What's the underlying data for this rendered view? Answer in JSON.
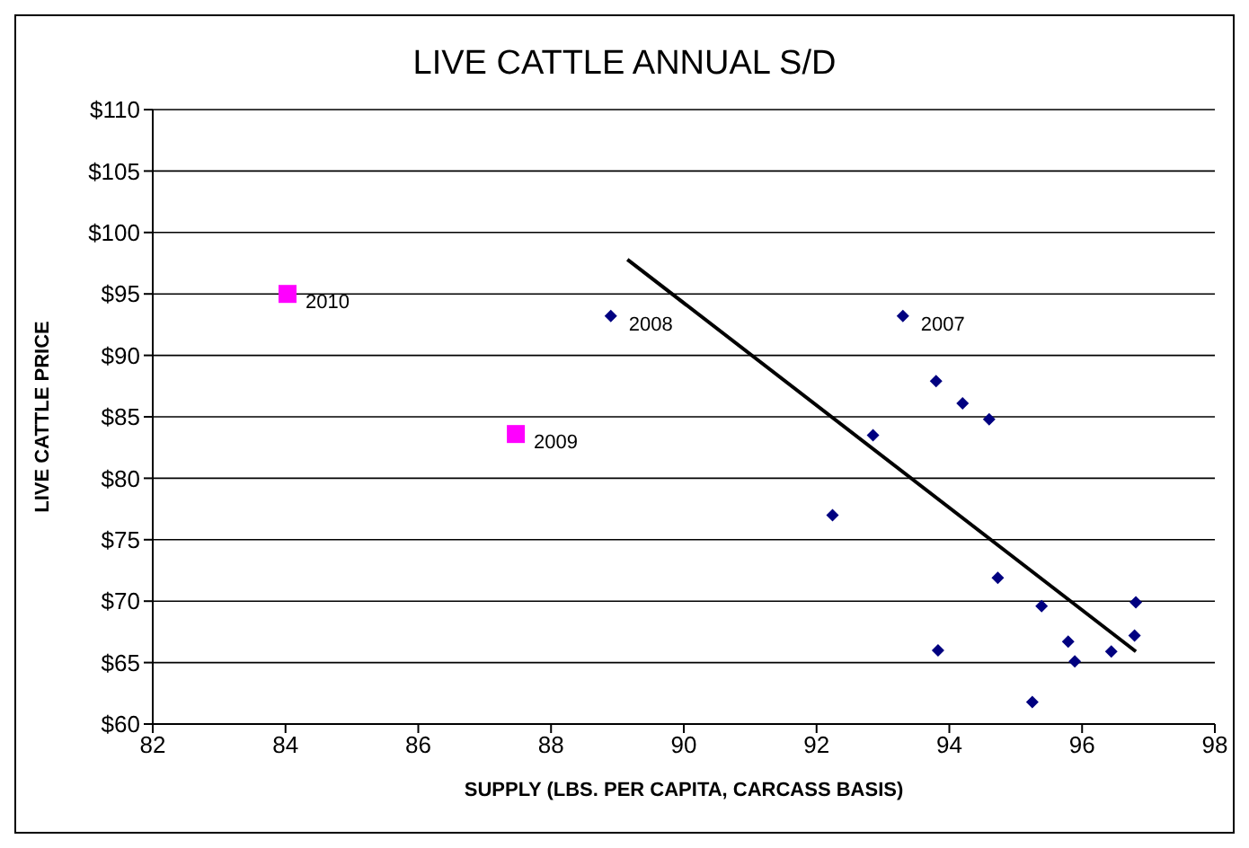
{
  "chart_data": {
    "type": "scatter",
    "title": "LIVE CATTLE ANNUAL S/D",
    "xlabel": "SUPPLY (LBS. PER CAPITA, CARCASS BASIS)",
    "ylabel": "LIVE CATTLE PRICE",
    "xlim": [
      82,
      98
    ],
    "xticks": [
      82,
      84,
      86,
      88,
      90,
      92,
      94,
      96,
      98
    ],
    "ylim": [
      60,
      110
    ],
    "yticks": [
      {
        "value": 60,
        "label": "$60"
      },
      {
        "value": 65,
        "label": "$65"
      },
      {
        "value": 70,
        "label": "$70"
      },
      {
        "value": 75,
        "label": "$75"
      },
      {
        "value": 80,
        "label": "$80"
      },
      {
        "value": 85,
        "label": "$85"
      },
      {
        "value": 90,
        "label": "$90"
      },
      {
        "value": 95,
        "label": "$95"
      },
      {
        "value": 100,
        "label": "$100"
      },
      {
        "value": 105,
        "label": "$105"
      },
      {
        "value": 110,
        "label": "$110"
      }
    ],
    "grid": "y",
    "series": [
      {
        "marker": "diamond",
        "color": "#000080",
        "x": [
          88.9,
          93.3,
          93.8,
          94.2,
          94.6,
          92.85,
          92.24,
          94.73,
          95.39,
          96.81,
          96.79,
          95.79,
          93.83,
          96.44,
          95.89,
          95.25
        ],
        "values": [
          93.2,
          93.2,
          87.9,
          86.1,
          84.8,
          83.5,
          77.0,
          71.9,
          69.6,
          69.9,
          67.2,
          66.7,
          66.0,
          65.9,
          65.1,
          61.8
        ]
      },
      {
        "marker": "square",
        "color": "#ff00ff",
        "x": [
          84.03,
          87.47
        ],
        "values": [
          95.0,
          83.6
        ]
      },
      {
        "type": "line",
        "marker": "none",
        "color": "#000000",
        "x": [
          89.15,
          96.81
        ],
        "values": [
          97.8,
          65.9
        ]
      }
    ],
    "annotations": [
      {
        "text": "2010",
        "x": 84.03,
        "y": 95.0
      },
      {
        "text": "2009",
        "x": 87.47,
        "y": 83.6
      },
      {
        "text": "2008",
        "x": 88.9,
        "y": 93.2
      },
      {
        "text": "2007",
        "x": 93.3,
        "y": 93.2
      }
    ]
  }
}
